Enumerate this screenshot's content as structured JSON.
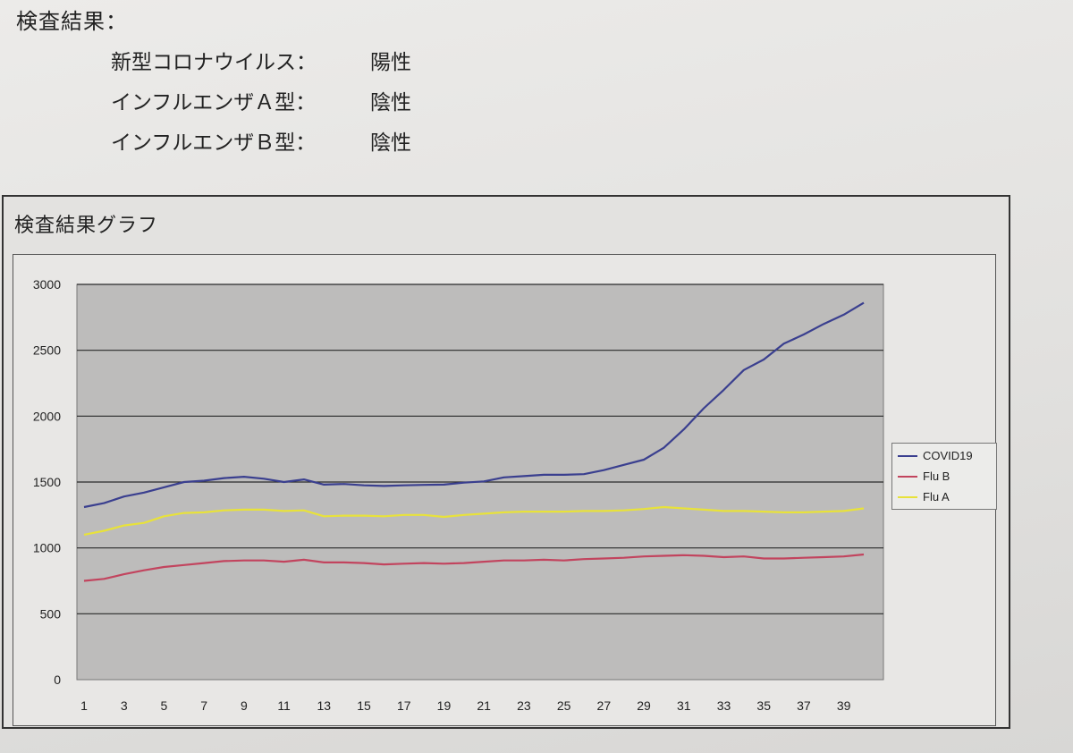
{
  "document": {
    "results_title": "検査結果：",
    "results": [
      {
        "name": "新型コロナウイルス：",
        "value": "陽性"
      },
      {
        "name": "インフルエンザＡ型：",
        "value": "陰性"
      },
      {
        "name": "インフルエンザＢ型：",
        "value": "陰性"
      }
    ],
    "graph_title": "検査結果グラフ"
  },
  "chart_data": {
    "type": "line",
    "title": "",
    "xlabel": "",
    "ylabel": "",
    "ylim": [
      0,
      3000
    ],
    "yticks": [
      0,
      500,
      1000,
      1500,
      2000,
      2500,
      3000
    ],
    "x": [
      1,
      2,
      3,
      4,
      5,
      6,
      7,
      8,
      9,
      10,
      11,
      12,
      13,
      14,
      15,
      16,
      17,
      18,
      19,
      20,
      21,
      22,
      23,
      24,
      25,
      26,
      27,
      28,
      29,
      30,
      31,
      32,
      33,
      34,
      35,
      36,
      37,
      38,
      39,
      40
    ],
    "x_tick_labels": [
      "1",
      "3",
      "5",
      "7",
      "9",
      "11",
      "13",
      "15",
      "17",
      "19",
      "21",
      "23",
      "25",
      "27",
      "29",
      "31",
      "33",
      "35",
      "37",
      "39"
    ],
    "grid": "horizontal",
    "legend_position": "right",
    "series": [
      {
        "name": "COVID19",
        "color": "#3a3f8f",
        "values": [
          1310,
          1340,
          1390,
          1420,
          1460,
          1500,
          1510,
          1530,
          1540,
          1525,
          1500,
          1520,
          1480,
          1485,
          1475,
          1470,
          1475,
          1478,
          1480,
          1495,
          1505,
          1535,
          1545,
          1555,
          1555,
          1560,
          1590,
          1630,
          1670,
          1760,
          1900,
          2060,
          2200,
          2350,
          2430,
          2550,
          2620,
          2700,
          2770,
          2860
        ]
      },
      {
        "name": "Flu B",
        "color": "#c2445e",
        "values": [
          750,
          765,
          800,
          830,
          855,
          870,
          885,
          900,
          905,
          905,
          895,
          910,
          890,
          890,
          885,
          875,
          880,
          885,
          880,
          885,
          895,
          905,
          905,
          910,
          905,
          915,
          920,
          925,
          935,
          940,
          945,
          940,
          930,
          935,
          920,
          920,
          925,
          930,
          935,
          950
        ]
      },
      {
        "name": "Flu A",
        "color": "#e8e23a",
        "values": [
          1100,
          1130,
          1170,
          1190,
          1240,
          1265,
          1270,
          1285,
          1290,
          1290,
          1280,
          1285,
          1240,
          1245,
          1245,
          1240,
          1250,
          1250,
          1235,
          1250,
          1260,
          1270,
          1275,
          1275,
          1275,
          1280,
          1280,
          1285,
          1295,
          1310,
          1300,
          1290,
          1280,
          1280,
          1275,
          1270,
          1270,
          1275,
          1280,
          1300
        ]
      }
    ]
  }
}
